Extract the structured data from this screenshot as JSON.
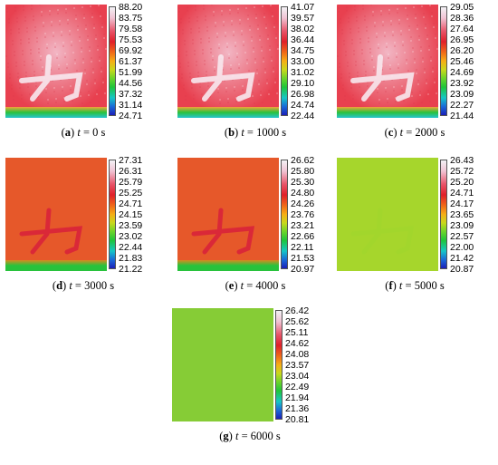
{
  "panels": [
    {
      "letter": "a",
      "time_var": "t",
      "time_rest": " = 0 s",
      "ticks": [
        "88.20",
        "83.75",
        "79.58",
        "75.53",
        "69.92",
        "61.37",
        "51.99",
        "44.56",
        "37.32",
        "31.14",
        "24.71"
      ],
      "palette": "hot",
      "symbol": true
    },
    {
      "letter": "b",
      "time_var": "t",
      "time_rest": " = 1000 s",
      "ticks": [
        "41.07",
        "39.57",
        "38.02",
        "36.44",
        "34.75",
        "33.00",
        "31.02",
        "29.10",
        "26.98",
        "24.74",
        "22.44"
      ],
      "palette": "hot",
      "symbol": true
    },
    {
      "letter": "c",
      "time_var": "t",
      "time_rest": " = 2000 s",
      "ticks": [
        "29.05",
        "28.36",
        "27.64",
        "26.95",
        "26.20",
        "25.46",
        "24.69",
        "23.92",
        "23.09",
        "22.27",
        "21.44"
      ],
      "palette": "hot",
      "symbol": true
    },
    {
      "letter": "d",
      "time_var": "t",
      "time_rest": " = 3000 s",
      "ticks": [
        "27.31",
        "26.31",
        "25.79",
        "25.25",
        "24.71",
        "24.15",
        "23.59",
        "23.02",
        "22.44",
        "21.83",
        "21.22"
      ],
      "palette": "warm",
      "symbol": true
    },
    {
      "letter": "e",
      "time_var": "t",
      "time_rest": " = 4000 s",
      "ticks": [
        "26.62",
        "25.80",
        "25.30",
        "24.80",
        "24.26",
        "23.76",
        "23.21",
        "22.66",
        "22.11",
        "21.53",
        "20.97"
      ],
      "palette": "warm",
      "symbol": true
    },
    {
      "letter": "f",
      "time_var": "t",
      "time_rest": " = 5000 s",
      "ticks": [
        "26.43",
        "25.72",
        "25.20",
        "24.71",
        "24.17",
        "23.65",
        "23.09",
        "22.57",
        "22.00",
        "21.42",
        "20.87"
      ],
      "palette": "lime",
      "symbol": true
    },
    {
      "letter": "g",
      "time_var": "t",
      "time_rest": " = 6000 s",
      "ticks": [
        "26.42",
        "25.62",
        "25.11",
        "24.62",
        "24.08",
        "23.57",
        "23.04",
        "22.49",
        "21.94",
        "21.36",
        "20.81"
      ],
      "palette": "green",
      "symbol": false
    }
  ],
  "colors": {
    "hot_base": "#e8404f",
    "hot_glow": "#f2b6c4",
    "warm_base": "#e6582a",
    "warm_edge": "#d88a20",
    "lime_base": "#a6d62c",
    "green_base": "#86cc36",
    "bottom_edge_green": "#28c23c",
    "bottom_edge_cyan": "#27c4d0"
  }
}
